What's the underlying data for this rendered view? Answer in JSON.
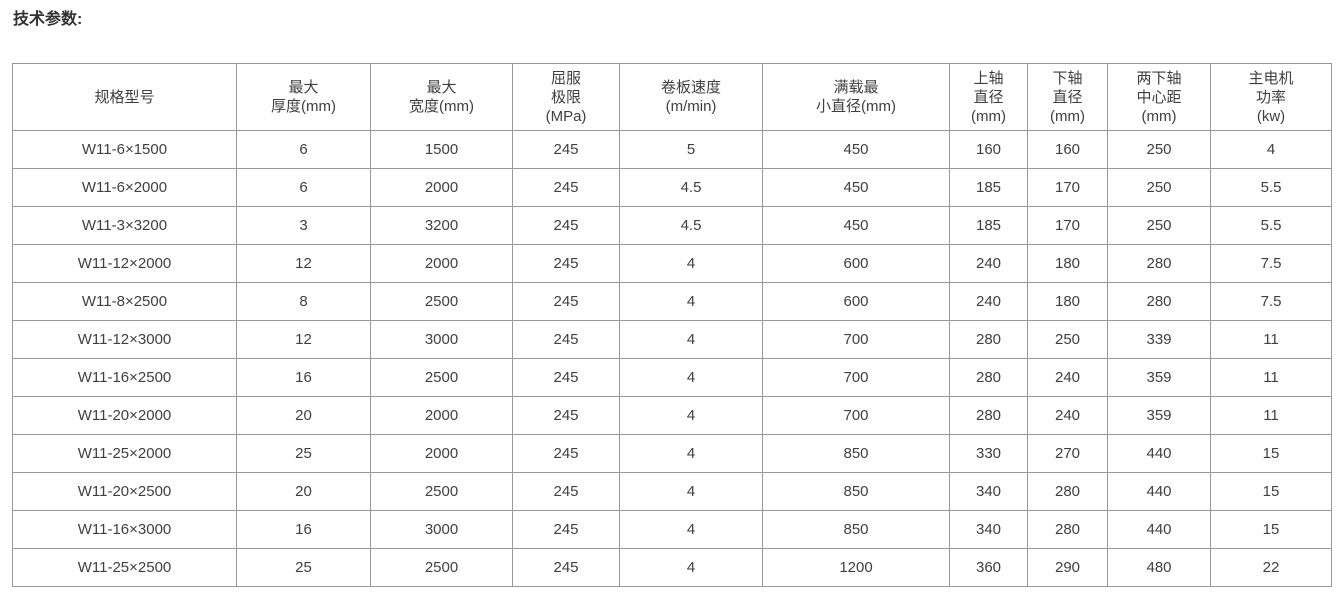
{
  "page": {
    "title": "技术参数:"
  },
  "colors": {
    "border": "#999999",
    "text": "#404040",
    "title": "#333333",
    "background": "#ffffff"
  },
  "table": {
    "headers": [
      {
        "name": "spec-model",
        "lines": [
          "规格型号"
        ]
      },
      {
        "name": "max-thickness",
        "lines": [
          "最大",
          "厚度(mm)"
        ]
      },
      {
        "name": "max-width",
        "lines": [
          "最大",
          "宽度(mm)"
        ]
      },
      {
        "name": "yield-limit",
        "lines": [
          "屈服",
          "极限",
          "(MPa)"
        ]
      },
      {
        "name": "rolling-speed",
        "lines": [
          "卷板速度",
          "(m/min)"
        ]
      },
      {
        "name": "min-diameter-full",
        "lines": [
          "满载最",
          "小直径(mm)"
        ]
      },
      {
        "name": "upper-shaft-dia",
        "lines": [
          "上轴",
          "直径",
          "(mm)"
        ]
      },
      {
        "name": "lower-shaft-dia",
        "lines": [
          "下轴",
          "直径",
          "(mm)"
        ]
      },
      {
        "name": "lower-shaft-center",
        "lines": [
          "两下轴",
          "中心距",
          "(mm)"
        ]
      },
      {
        "name": "main-motor-power",
        "lines": [
          "主电机",
          "功率",
          "(kw)"
        ]
      }
    ],
    "rows": [
      [
        "W11-6×1500",
        "6",
        "1500",
        "245",
        "5",
        "450",
        "160",
        "160",
        "250",
        "4"
      ],
      [
        "W11-6×2000",
        "6",
        "2000",
        "245",
        "4.5",
        "450",
        "185",
        "170",
        "250",
        "5.5"
      ],
      [
        "W11-3×3200",
        "3",
        "3200",
        "245",
        "4.5",
        "450",
        "185",
        "170",
        "250",
        "5.5"
      ],
      [
        "W11-12×2000",
        "12",
        "2000",
        "245",
        "4",
        "600",
        "240",
        "180",
        "280",
        "7.5"
      ],
      [
        "W11-8×2500",
        "8",
        "2500",
        "245",
        "4",
        "600",
        "240",
        "180",
        "280",
        "7.5"
      ],
      [
        "W11-12×3000",
        "12",
        "3000",
        "245",
        "4",
        "700",
        "280",
        "250",
        "339",
        "11"
      ],
      [
        "W11-16×2500",
        "16",
        "2500",
        "245",
        "4",
        "700",
        "280",
        "240",
        "359",
        "11"
      ],
      [
        "W11-20×2000",
        "20",
        "2000",
        "245",
        "4",
        "700",
        "280",
        "240",
        "359",
        "11"
      ],
      [
        "W11-25×2000",
        "25",
        "2000",
        "245",
        "4",
        "850",
        "330",
        "270",
        "440",
        "15"
      ],
      [
        "W11-20×2500",
        "20",
        "2500",
        "245",
        "4",
        "850",
        "340",
        "280",
        "440",
        "15"
      ],
      [
        "W11-16×3000",
        "16",
        "3000",
        "245",
        "4",
        "850",
        "340",
        "280",
        "440",
        "15"
      ],
      [
        "W11-25×2500",
        "25",
        "2500",
        "245",
        "4",
        "1200",
        "360",
        "290",
        "480",
        "22"
      ]
    ]
  }
}
